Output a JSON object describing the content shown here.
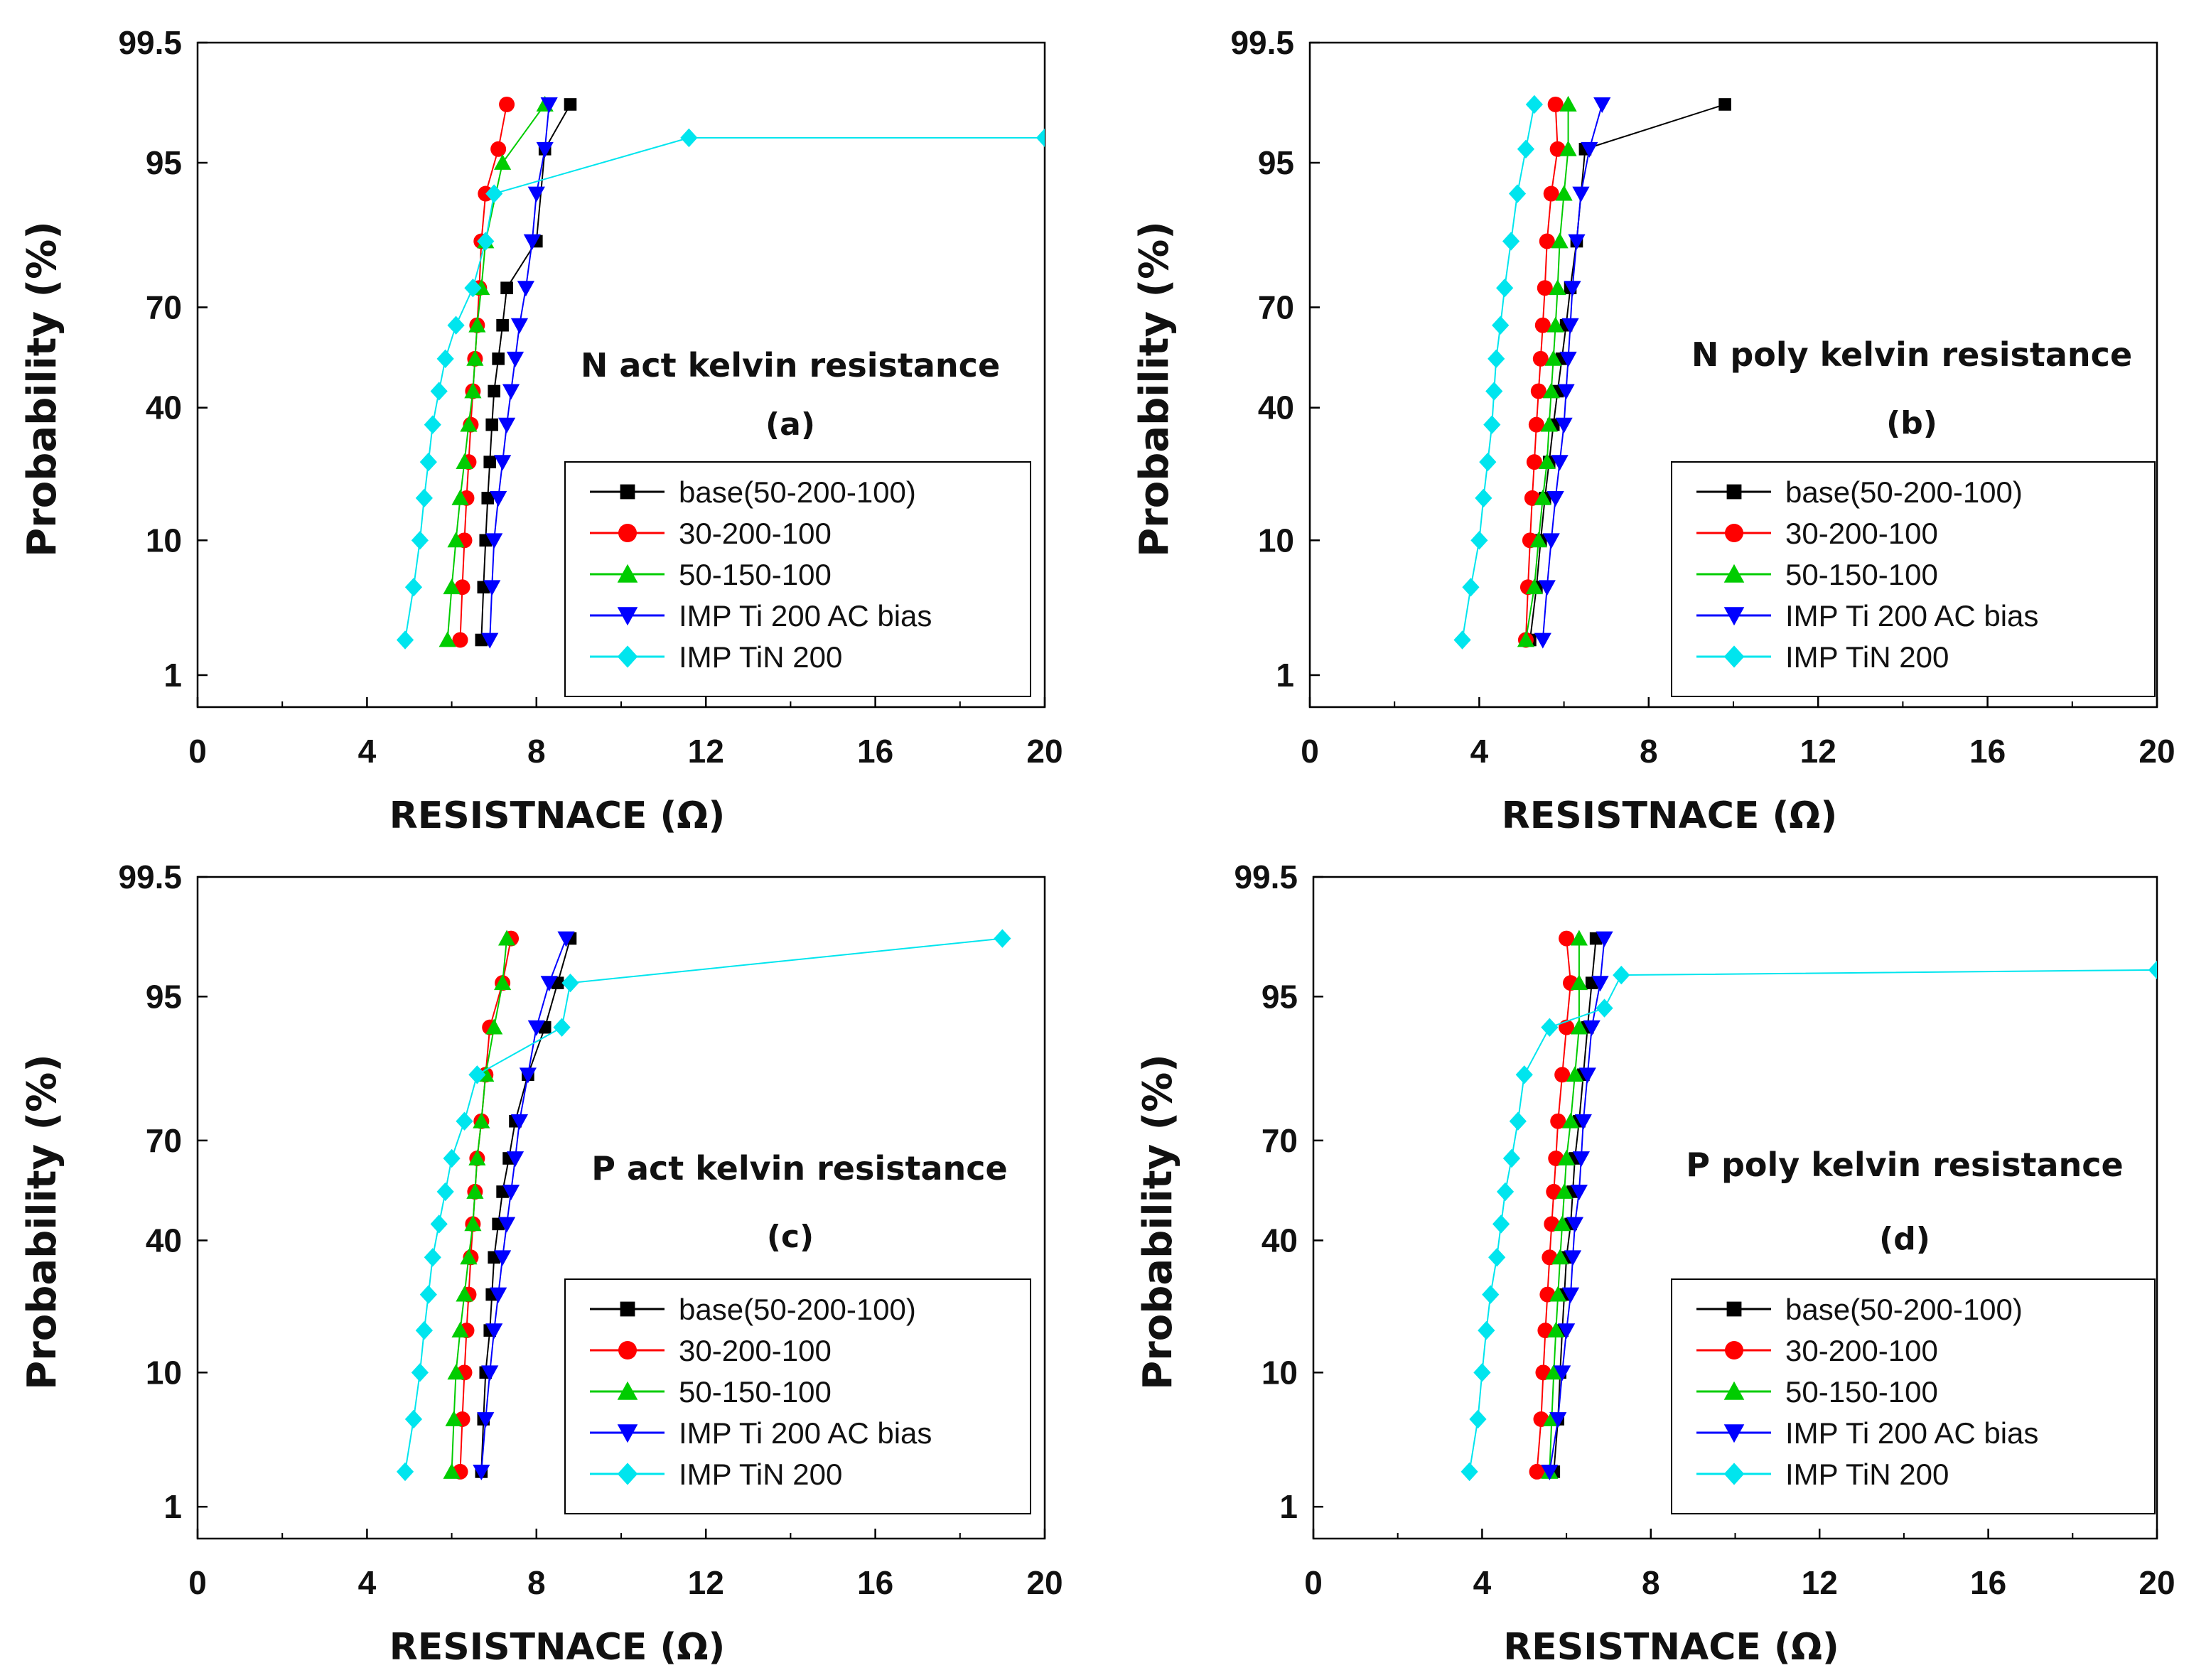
{
  "colors": {
    "base": "#000000",
    "s30": "#ff0000",
    "s50": "#00cc00",
    "ti": "#0000ff",
    "tin": "#00e5ee",
    "axis": "#000000"
  },
  "chart_data": [
    {
      "type": "scatter",
      "panel": "a",
      "annotation": "N act kelvin resistance",
      "panel_label": "(a)",
      "xlabel": "RESISTNACE (Ω)",
      "ylabel": "Probability (%)",
      "xlim": [
        0,
        20
      ],
      "xticks": [
        "0",
        "4",
        "8",
        "12",
        "16",
        "20"
      ],
      "yticks": [
        "1",
        "10",
        "40",
        "70",
        "95",
        "99.5"
      ],
      "legend_position": "bottom-right",
      "series": [
        {
          "name": "base(50-200-100)",
          "marker": "square",
          "color_key": "base",
          "x": [
            6.7,
            6.75,
            6.8,
            6.85,
            6.9,
            6.95,
            7.0,
            7.1,
            7.2,
            7.3,
            8.0,
            8.2,
            8.8
          ],
          "y": [
            2,
            5,
            10,
            17,
            25,
            35,
            45,
            55,
            65,
            75,
            85,
            96,
            98.2
          ]
        },
        {
          "name": "30-200-100",
          "marker": "circle",
          "color_key": "s30",
          "x": [
            6.2,
            6.25,
            6.3,
            6.35,
            6.4,
            6.45,
            6.5,
            6.55,
            6.6,
            6.65,
            6.7,
            6.8,
            7.1,
            7.3
          ],
          "y": [
            2,
            5,
            10,
            17,
            25,
            35,
            45,
            55,
            65,
            75,
            85,
            92,
            96,
            98.2
          ]
        },
        {
          "name": "50-150-100",
          "marker": "triangle-up",
          "color_key": "s50",
          "x": [
            5.9,
            6.0,
            6.1,
            6.2,
            6.3,
            6.4,
            6.5,
            6.55,
            6.6,
            6.7,
            6.8,
            7.2,
            8.2
          ],
          "y": [
            2,
            5,
            10,
            17,
            25,
            35,
            45,
            55,
            65,
            75,
            85,
            95,
            98.2
          ]
        },
        {
          "name": "IMP Ti 200 AC bias",
          "marker": "triangle-down",
          "color_key": "ti",
          "x": [
            6.9,
            6.95,
            7.0,
            7.1,
            7.2,
            7.3,
            7.4,
            7.5,
            7.6,
            7.75,
            7.9,
            8.0,
            8.2,
            8.3
          ],
          "y": [
            2,
            5,
            10,
            17,
            25,
            35,
            45,
            55,
            65,
            75,
            85,
            92,
            96,
            98.2
          ]
        },
        {
          "name": "IMP TiN 200",
          "marker": "diamond",
          "color_key": "tin",
          "x": [
            4.9,
            5.1,
            5.25,
            5.35,
            5.45,
            5.55,
            5.7,
            5.85,
            6.1,
            6.5,
            6.8,
            7.0,
            11.6,
            20.0
          ],
          "y": [
            2,
            5,
            10,
            17,
            25,
            35,
            45,
            55,
            65,
            75,
            85,
            92,
            96.7,
            96.7
          ]
        }
      ]
    },
    {
      "type": "scatter",
      "panel": "b",
      "annotation": "N poly kelvin resistance",
      "panel_label": "(b)",
      "xlabel": "RESISTNACE (Ω)",
      "ylabel": "Probability (%)",
      "xlim": [
        0,
        20
      ],
      "xticks": [
        "0",
        "4",
        "8",
        "12",
        "16",
        "20"
      ],
      "yticks": [
        "1",
        "10",
        "40",
        "70",
        "95",
        "99.5"
      ],
      "legend_position": "bottom-right",
      "series": [
        {
          "name": "base(50-200-100)",
          "marker": "square",
          "color_key": "base",
          "x": [
            5.2,
            5.35,
            5.45,
            5.55,
            5.65,
            5.75,
            5.85,
            5.95,
            6.05,
            6.15,
            6.3,
            6.5,
            9.8
          ],
          "y": [
            2,
            5,
            10,
            17,
            25,
            35,
            45,
            55,
            65,
            75,
            85,
            96,
            98.2
          ]
        },
        {
          "name": "30-200-100",
          "marker": "circle",
          "color_key": "s30",
          "x": [
            5.1,
            5.15,
            5.2,
            5.25,
            5.3,
            5.35,
            5.4,
            5.45,
            5.5,
            5.55,
            5.6,
            5.7,
            5.85,
            5.8
          ],
          "y": [
            2,
            5,
            10,
            17,
            25,
            35,
            45,
            55,
            65,
            75,
            85,
            92,
            96,
            98.2
          ]
        },
        {
          "name": "50-150-100",
          "marker": "triangle-up",
          "color_key": "s50",
          "x": [
            5.1,
            5.3,
            5.4,
            5.5,
            5.6,
            5.65,
            5.7,
            5.75,
            5.8,
            5.85,
            5.9,
            6.0,
            6.1,
            6.1
          ],
          "y": [
            2,
            5,
            10,
            17,
            25,
            35,
            45,
            55,
            65,
            75,
            85,
            92,
            96,
            98.2
          ]
        },
        {
          "name": "IMP Ti 200 AC bias",
          "marker": "triangle-down",
          "color_key": "ti",
          "x": [
            5.5,
            5.6,
            5.7,
            5.8,
            5.9,
            6.0,
            6.05,
            6.1,
            6.15,
            6.2,
            6.3,
            6.4,
            6.6,
            6.9
          ],
          "y": [
            2,
            5,
            10,
            17,
            25,
            35,
            45,
            55,
            65,
            75,
            85,
            92,
            96,
            98.2
          ]
        },
        {
          "name": "IMP TiN 200",
          "marker": "diamond",
          "color_key": "tin",
          "x": [
            3.6,
            3.8,
            4.0,
            4.1,
            4.2,
            4.3,
            4.35,
            4.4,
            4.5,
            4.6,
            4.75,
            4.9,
            5.1,
            5.3
          ],
          "y": [
            2,
            5,
            10,
            17,
            25,
            35,
            45,
            55,
            65,
            75,
            85,
            92,
            96,
            98.2
          ]
        }
      ]
    },
    {
      "type": "scatter",
      "panel": "c",
      "annotation": "P act kelvin resistance",
      "panel_label": "(c)",
      "xlabel": "RESISTNACE (Ω)",
      "ylabel": "Probability (%)",
      "xlim": [
        0,
        20
      ],
      "xticks": [
        "0",
        "4",
        "8",
        "12",
        "16",
        "20"
      ],
      "yticks": [
        "1",
        "10",
        "40",
        "70",
        "95",
        "99.5"
      ],
      "legend_position": "bottom-right",
      "series": [
        {
          "name": "base(50-200-100)",
          "marker": "square",
          "color_key": "base",
          "x": [
            6.7,
            6.75,
            6.8,
            6.9,
            6.95,
            7.0,
            7.1,
            7.2,
            7.35,
            7.5,
            7.8,
            8.2,
            8.5,
            8.8
          ],
          "y": [
            2,
            5,
            10,
            17,
            25,
            35,
            45,
            55,
            65,
            75,
            85,
            92,
            96,
            98.2
          ]
        },
        {
          "name": "30-200-100",
          "marker": "circle",
          "color_key": "s30",
          "x": [
            6.2,
            6.25,
            6.3,
            6.35,
            6.4,
            6.45,
            6.5,
            6.55,
            6.6,
            6.7,
            6.8,
            6.9,
            7.2,
            7.4
          ],
          "y": [
            2,
            5,
            10,
            17,
            25,
            35,
            45,
            55,
            65,
            75,
            85,
            92,
            96,
            98.2
          ]
        },
        {
          "name": "50-150-100",
          "marker": "triangle-up",
          "color_key": "s50",
          "x": [
            6.0,
            6.05,
            6.1,
            6.2,
            6.3,
            6.4,
            6.5,
            6.55,
            6.6,
            6.7,
            6.8,
            7.0,
            7.2,
            7.3
          ],
          "y": [
            2,
            5,
            10,
            17,
            25,
            35,
            45,
            55,
            65,
            75,
            85,
            92,
            96,
            98.2
          ]
        },
        {
          "name": "IMP Ti 200 AC bias",
          "marker": "triangle-down",
          "color_key": "ti",
          "x": [
            6.7,
            6.8,
            6.9,
            7.0,
            7.1,
            7.2,
            7.3,
            7.4,
            7.5,
            7.6,
            7.8,
            8.0,
            8.3,
            8.7
          ],
          "y": [
            2,
            5,
            10,
            17,
            25,
            35,
            45,
            55,
            65,
            75,
            85,
            92,
            96,
            98.2
          ]
        },
        {
          "name": "IMP TiN 200",
          "marker": "diamond",
          "color_key": "tin",
          "x": [
            4.9,
            5.1,
            5.25,
            5.35,
            5.45,
            5.55,
            5.7,
            5.85,
            6.0,
            6.3,
            6.6,
            8.6,
            8.8,
            19.0
          ],
          "y": [
            2,
            5,
            10,
            17,
            25,
            35,
            45,
            55,
            65,
            75,
            85,
            92,
            96,
            98.2
          ]
        }
      ]
    },
    {
      "type": "scatter",
      "panel": "d",
      "annotation": "P poly kelvin resistance",
      "panel_label": "(d)",
      "xlabel": "RESISTNACE (Ω)",
      "ylabel": "Probability (%)",
      "xlim": [
        0,
        20
      ],
      "xticks": [
        "0",
        "4",
        "8",
        "12",
        "16",
        "20"
      ],
      "yticks": [
        "1",
        "10",
        "40",
        "70",
        "95",
        "99.5"
      ],
      "legend_position": "bottom-right",
      "series": [
        {
          "name": "base(50-200-100)",
          "marker": "square",
          "color_key": "base",
          "x": [
            5.7,
            5.8,
            5.85,
            5.9,
            5.95,
            6.0,
            6.1,
            6.15,
            6.2,
            6.3,
            6.4,
            6.5,
            6.6,
            6.7
          ],
          "y": [
            2,
            5,
            10,
            17,
            25,
            35,
            45,
            55,
            65,
            75,
            85,
            92,
            96,
            98.2
          ]
        },
        {
          "name": "30-200-100",
          "marker": "circle",
          "color_key": "s30",
          "x": [
            5.3,
            5.4,
            5.45,
            5.5,
            5.55,
            5.6,
            5.65,
            5.7,
            5.75,
            5.8,
            5.9,
            6.0,
            6.1,
            6.0
          ],
          "y": [
            2,
            5,
            10,
            17,
            25,
            35,
            45,
            55,
            65,
            75,
            85,
            92,
            96,
            98.2
          ]
        },
        {
          "name": "50-150-100",
          "marker": "triangle-up",
          "color_key": "s50",
          "x": [
            5.6,
            5.65,
            5.7,
            5.75,
            5.8,
            5.85,
            5.9,
            5.95,
            6.0,
            6.1,
            6.2,
            6.3,
            6.3,
            6.3
          ],
          "y": [
            2,
            5,
            10,
            17,
            25,
            35,
            45,
            55,
            65,
            75,
            85,
            92,
            96,
            98.2
          ]
        },
        {
          "name": "IMP Ti 200 AC bias",
          "marker": "triangle-down",
          "color_key": "ti",
          "x": [
            5.6,
            5.8,
            5.9,
            6.0,
            6.1,
            6.15,
            6.2,
            6.3,
            6.35,
            6.4,
            6.5,
            6.6,
            6.8,
            6.9
          ],
          "y": [
            2,
            5,
            10,
            17,
            25,
            35,
            45,
            55,
            65,
            75,
            85,
            92,
            96,
            98.2
          ]
        },
        {
          "name": "IMP TiN 200",
          "marker": "diamond",
          "color_key": "tin",
          "x": [
            3.7,
            3.9,
            4.0,
            4.1,
            4.2,
            4.35,
            4.45,
            4.55,
            4.7,
            4.85,
            5.0,
            5.6,
            6.9,
            7.3,
            20.0
          ],
          "y": [
            2,
            5,
            10,
            17,
            25,
            35,
            45,
            55,
            65,
            75,
            85,
            92,
            94,
            96.5,
            96.8
          ]
        }
      ]
    }
  ]
}
